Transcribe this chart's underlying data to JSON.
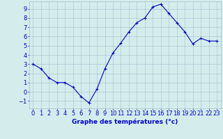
{
  "x": [
    0,
    1,
    2,
    3,
    4,
    5,
    6,
    7,
    8,
    9,
    10,
    11,
    12,
    13,
    14,
    15,
    16,
    17,
    18,
    19,
    20,
    21,
    22,
    23
  ],
  "y": [
    3,
    2.5,
    1.5,
    1.0,
    1.0,
    0.5,
    -0.5,
    -1.2,
    0.3,
    2.5,
    4.2,
    5.3,
    6.5,
    7.5,
    8.0,
    9.2,
    9.5,
    8.5,
    7.5,
    6.5,
    5.2,
    5.8,
    5.5,
    5.5
  ],
  "line_color": "#0000cc",
  "marker": "+",
  "marker_size": 3,
  "bg_color": "#d4edec",
  "grid_color": "#aabbcc",
  "xlabel": "Graphe des températures (°c)",
  "xlabel_color": "#0000cc",
  "xlabel_fontsize": 6.5,
  "tick_color": "#0000cc",
  "tick_fontsize": 6,
  "ylim": [
    -1.8,
    9.8
  ],
  "xlim": [
    -0.5,
    23.5
  ],
  "yticks": [
    -1,
    0,
    1,
    2,
    3,
    4,
    5,
    6,
    7,
    8,
    9
  ],
  "xticks": [
    0,
    1,
    2,
    3,
    4,
    5,
    6,
    7,
    8,
    9,
    10,
    11,
    12,
    13,
    14,
    15,
    16,
    17,
    18,
    19,
    20,
    21,
    22,
    23
  ]
}
